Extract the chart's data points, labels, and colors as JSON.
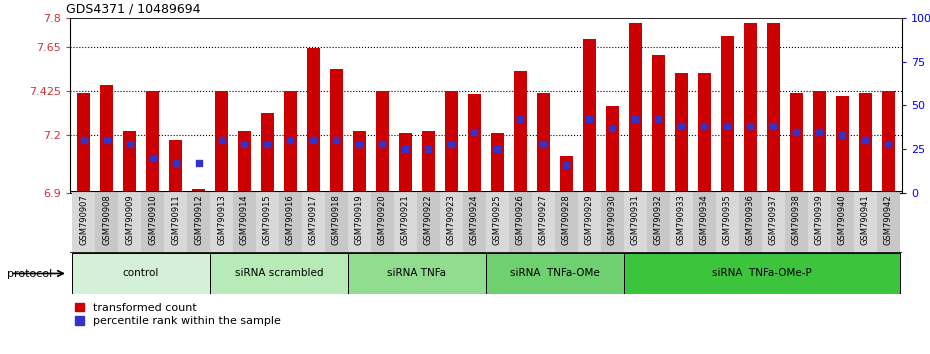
{
  "title": "GDS4371 / 10489694",
  "ylim_left": [
    6.9,
    7.8
  ],
  "ylim_right": [
    0,
    100
  ],
  "yticks_left": [
    6.9,
    7.2,
    7.425,
    7.65,
    7.8
  ],
  "ytick_labels_left": [
    "6.9",
    "7.2",
    "7.425",
    "7.65",
    "7.8"
  ],
  "yticks_right": [
    0,
    25,
    50,
    75,
    100
  ],
  "ytick_labels_right": [
    "0",
    "25",
    "50",
    "75",
    "100%"
  ],
  "bar_color": "#cc0000",
  "dot_color": "#3333cc",
  "samples": [
    "GSM790907",
    "GSM790908",
    "GSM790909",
    "GSM790910",
    "GSM790911",
    "GSM790912",
    "GSM790913",
    "GSM790914",
    "GSM790915",
    "GSM790916",
    "GSM790917",
    "GSM790918",
    "GSM790919",
    "GSM790920",
    "GSM790921",
    "GSM790922",
    "GSM790923",
    "GSM790924",
    "GSM790925",
    "GSM790926",
    "GSM790927",
    "GSM790928",
    "GSM790929",
    "GSM790930",
    "GSM790931",
    "GSM790932",
    "GSM790933",
    "GSM790934",
    "GSM790935",
    "GSM790936",
    "GSM790937",
    "GSM790938",
    "GSM790939",
    "GSM790940",
    "GSM790941",
    "GSM790942"
  ],
  "bar_heights": [
    7.415,
    7.455,
    7.22,
    7.425,
    7.17,
    6.92,
    7.425,
    7.22,
    7.31,
    7.425,
    7.645,
    7.535,
    7.22,
    7.425,
    7.21,
    7.22,
    7.425,
    7.41,
    7.21,
    7.525,
    7.415,
    7.09,
    7.69,
    7.345,
    7.775,
    7.61,
    7.515,
    7.515,
    7.705,
    7.775,
    7.775,
    7.415,
    7.425,
    7.4,
    7.415,
    7.425
  ],
  "dot_positions_pct": [
    30,
    30,
    28,
    20,
    17,
    17,
    30,
    28,
    28,
    30,
    30,
    30,
    28,
    28,
    25,
    25,
    28,
    35,
    25,
    42,
    28,
    16,
    42,
    37,
    42,
    42,
    38,
    38,
    38,
    38,
    38,
    35,
    35,
    33,
    30,
    28
  ],
  "groups": [
    {
      "label": "control",
      "start": 0,
      "end": 5
    },
    {
      "label": "siRNA scrambled",
      "start": 6,
      "end": 11
    },
    {
      "label": "siRNA TNFa",
      "start": 12,
      "end": 17
    },
    {
      "label": "siRNA  TNFa-OMe",
      "start": 18,
      "end": 23
    },
    {
      "label": "siRNA  TNFa-OMe-P",
      "start": 24,
      "end": 35
    }
  ],
  "group_colors": [
    "#d4f0d8",
    "#b8eab8",
    "#90dd90",
    "#6ed06e",
    "#3dc43d"
  ],
  "protocol_label": "protocol",
  "bar_width": 0.55
}
